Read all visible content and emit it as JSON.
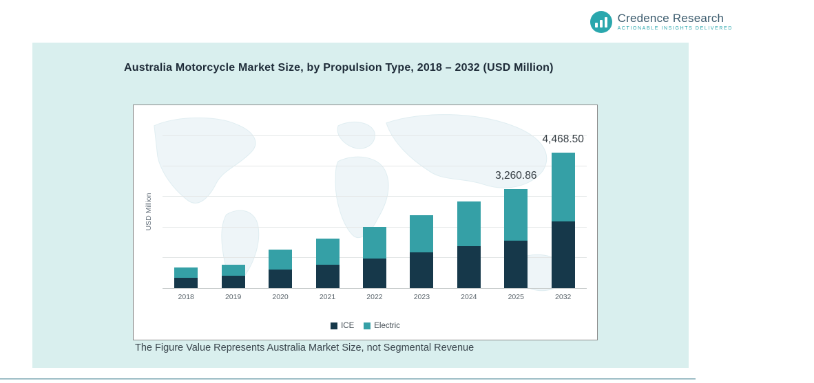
{
  "logo": {
    "brand": "Credence Research",
    "tagline": "Actionable Insights Delivered",
    "icon": "bar-chart-icon"
  },
  "title": "Australia Motorcycle Market Size, by Propulsion Type, 2018 – 2032 (USD Million)",
  "footnote": "The Figure Value Represents Australia Market Size, not Segmental Revenue",
  "colors": {
    "ice": "#16384a",
    "electric": "#35a0a6",
    "panel": "#d9efee",
    "accent": "#2aa7ad"
  },
  "chart_data": {
    "type": "bar",
    "stacked": true,
    "title": "Australia Motorcycle Market Size, by Propulsion Type, 2018 – 2032 (USD Million)",
    "categories": [
      "2018",
      "2019",
      "2020",
      "2021",
      "2022",
      "2023",
      "2024",
      "2025",
      "2032"
    ],
    "series": [
      {
        "name": "ICE",
        "color": "#16384a",
        "values": [
          350,
          410,
          620,
          770,
          965,
          1175,
          1380,
          1565,
          2190
        ]
      },
      {
        "name": "Electric",
        "color": "#35a0a6",
        "values": [
          340,
          370,
          650,
          870,
          1045,
          1225,
          1470,
          1695.86,
          2278.5
        ]
      }
    ],
    "totals": [
      690,
      780,
      1270,
      1640,
      2010,
      2400,
      2850,
      3260.86,
      4468.5
    ],
    "annotations": [
      {
        "category": "2025",
        "text": "3,260.86"
      },
      {
        "category": "2032",
        "text": "4,468.50"
      }
    ],
    "xlabel": "",
    "ylabel": "USD Million",
    "ylim": [
      0,
      5000
    ],
    "grid": true,
    "legend_position": "bottom"
  }
}
